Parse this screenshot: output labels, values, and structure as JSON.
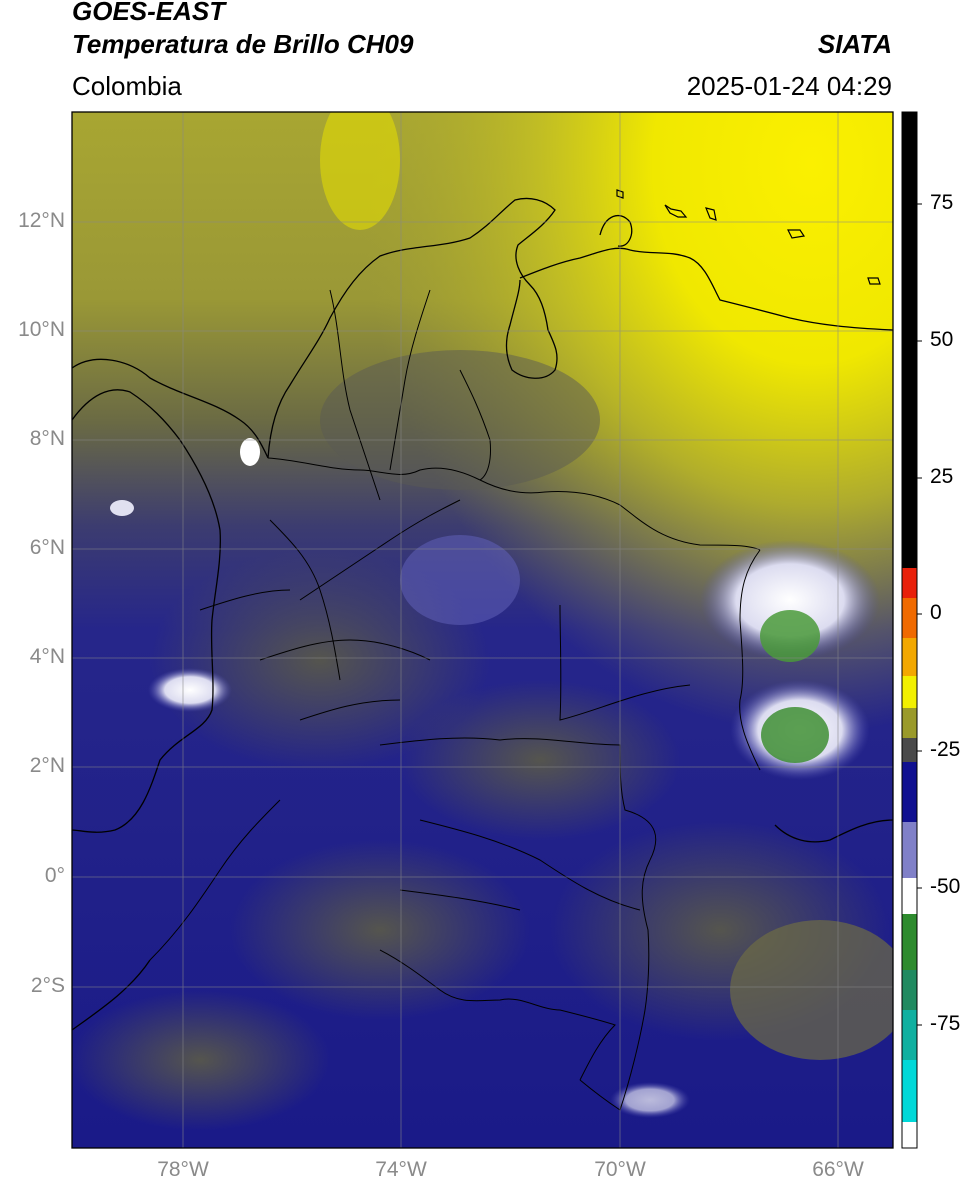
{
  "header": {
    "satellite": "GOES-EAST",
    "product": "Temperatura de Brillo CH09",
    "brand": "SIATA",
    "region": "Colombia",
    "datetime": "2025-01-24 04:29"
  },
  "map": {
    "lat_labels": [
      "12°N",
      "10°N",
      "8°N",
      "6°N",
      "4°N",
      "2°N",
      "0°",
      "2°S"
    ],
    "lon_labels": [
      "78°W",
      "74°W",
      "70°W",
      "66°W"
    ]
  },
  "colorbar": {
    "ticks": [
      "75",
      "50",
      "25",
      "0",
      "-25",
      "-50",
      "-75"
    ],
    "colors": {
      "black": "#000000",
      "red": "#e8200a",
      "orange": "#f39a00",
      "yellow": "#f2f000",
      "olive": "#9a9a2a",
      "gray": "#4a4a4a",
      "navy": "#101090",
      "white": "#ffffff",
      "green": "#2e8b2e",
      "cyan": "#00d8d8"
    }
  },
  "colors": {
    "yellow_bright": "#f2e800",
    "olive": "#a4a234",
    "olive_dark": "#6e6c3c",
    "gray_dark": "#4a4a4e",
    "navy": "#1c1c8a",
    "white_cloud": "#e8e8f4",
    "green_core": "#4a9a3a"
  }
}
